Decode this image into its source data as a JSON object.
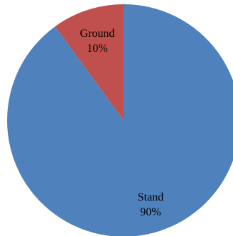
{
  "chart_data": {
    "type": "pie",
    "title": "",
    "slices": [
      {
        "label": "Stand",
        "value": 90,
        "display": "90%",
        "color": "#4F81BD"
      },
      {
        "label": "Ground",
        "value": 10,
        "display": "10%",
        "color": "#C0504D"
      }
    ]
  }
}
